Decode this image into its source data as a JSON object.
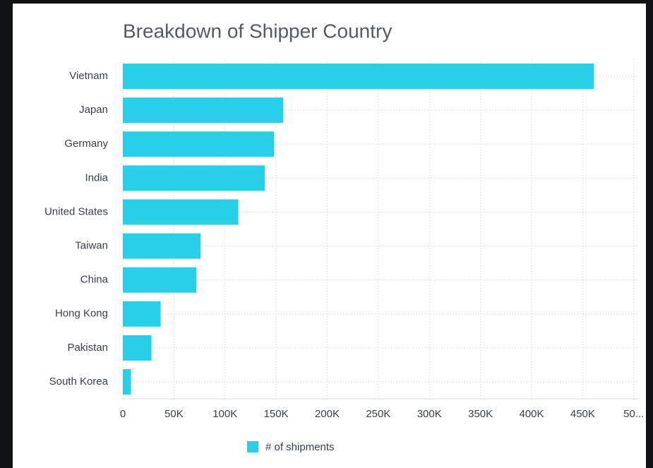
{
  "chart_data": {
    "type": "bar",
    "orientation": "horizontal",
    "title": "Breakdown of Shipper Country",
    "categories": [
      "Vietnam",
      "Japan",
      "Germany",
      "India",
      "United States",
      "Taiwan",
      "China",
      "Hong Kong",
      "Pakistan",
      "South Korea"
    ],
    "series": [
      {
        "name": "# of shipments",
        "color": "#29cfe6",
        "values": [
          461000,
          157000,
          148000,
          139000,
          113000,
          76000,
          72000,
          37000,
          28000,
          8000
        ]
      }
    ],
    "xlim": [
      0,
      505000
    ],
    "xticks": [
      0,
      {
        "value": 50000,
        "label": "50K"
      },
      {
        "value": 100000,
        "label": "100K"
      },
      {
        "value": 150000,
        "label": "150K"
      },
      {
        "value": 200000,
        "label": "200K"
      },
      {
        "value": 250000,
        "label": "250K"
      },
      {
        "value": 300000,
        "label": "300K"
      },
      {
        "value": 350000,
        "label": "350K"
      },
      {
        "value": 400000,
        "label": "400K"
      },
      {
        "value": 450000,
        "label": "450K"
      },
      {
        "value": 500000,
        "label": "50..."
      }
    ],
    "grid": true,
    "legend": "bottom"
  }
}
